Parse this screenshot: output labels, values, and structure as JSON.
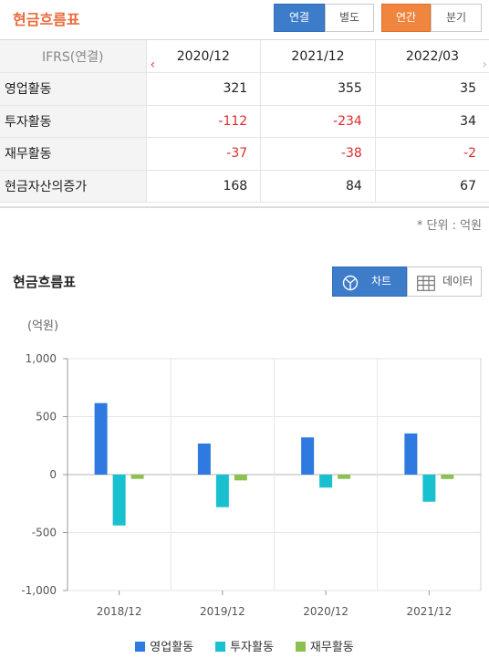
{
  "header": {
    "title": "현금흐름표",
    "buttons": {
      "consolidated": "연결",
      "separate": "별도",
      "annual": "연간",
      "quarterly": "분기"
    }
  },
  "table": {
    "corner_label": "IFRS(연결)",
    "columns": [
      "2020/12",
      "2021/12",
      "2022/03"
    ],
    "rows": [
      {
        "label": "영업활동",
        "values": [
          "321",
          "355",
          "35"
        ]
      },
      {
        "label": "투자활동",
        "values": [
          "-112",
          "-234",
          "34"
        ]
      },
      {
        "label": "재무활동",
        "values": [
          "-37",
          "-38",
          "-2"
        ]
      },
      {
        "label": "현금자산의증가",
        "values": [
          "168",
          "84",
          "67"
        ]
      }
    ]
  },
  "unit_note": "* 단위 : 억원",
  "chart_section": {
    "title": "현금흐름표",
    "chart_button": "차트",
    "data_button": "데이터",
    "unit_label": "(억원)"
  },
  "colors": {
    "accent_blue": "#3d7cc9",
    "accent_orange": "#f0853f",
    "title_orange": "#e96a3a",
    "negative_red": "#e02a2a"
  },
  "chart_data": {
    "type": "bar",
    "categories": [
      "2018/12",
      "2019/12",
      "2020/12",
      "2021/12"
    ],
    "series": [
      {
        "name": "영업활동",
        "color": "#2f7ae0",
        "values": [
          617,
          268,
          321,
          355
        ]
      },
      {
        "name": "투자활동",
        "color": "#19c0d0",
        "values": [
          -439,
          -281,
          -112,
          -234
        ]
      },
      {
        "name": "재무활동",
        "color": "#8cc152",
        "values": [
          -37,
          -50,
          -37,
          -38
        ]
      }
    ],
    "yticks": [
      1000,
      500,
      0,
      -500,
      -1000
    ],
    "ytick_labels": [
      "1,000",
      "500",
      "0",
      "-500",
      "-1,000"
    ],
    "ylim": [
      -1000,
      1000
    ],
    "ylabel": "(억원)",
    "grid": true,
    "legend": "bottom"
  }
}
